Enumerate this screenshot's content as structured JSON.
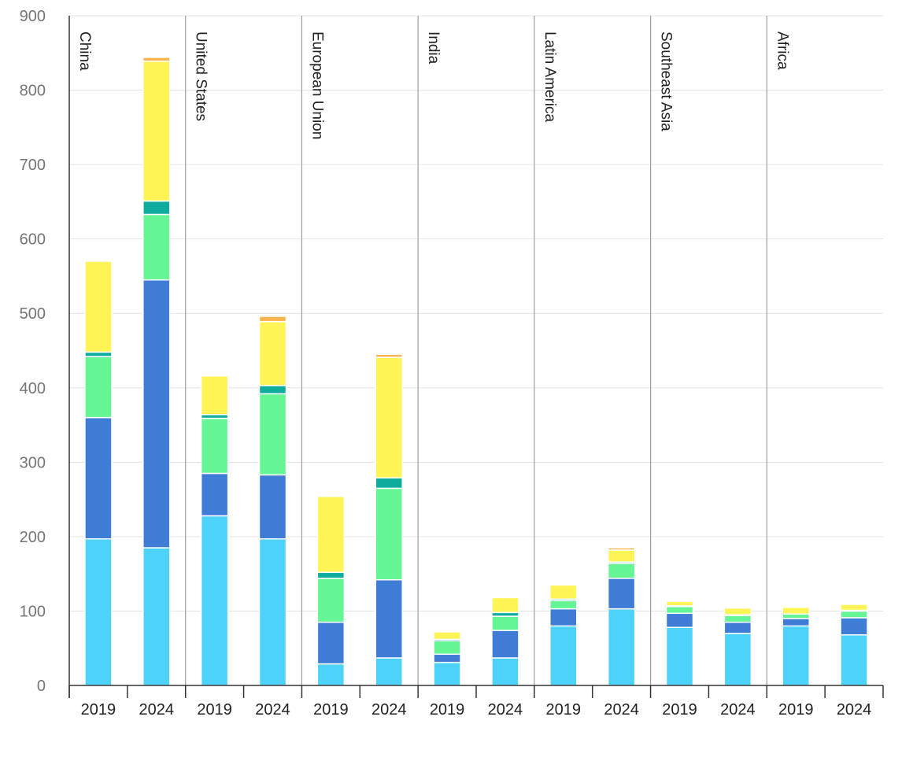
{
  "chart_data": {
    "type": "bar",
    "stacked": true,
    "ylim": [
      0,
      900
    ],
    "yticks": [
      0,
      100,
      200,
      300,
      400,
      500,
      600,
      700,
      800,
      900
    ],
    "grid": true,
    "legend": "none",
    "groups": [
      {
        "name": "China",
        "categories": [
          "2019",
          "2024"
        ]
      },
      {
        "name": "United States",
        "categories": [
          "2019",
          "2024"
        ]
      },
      {
        "name": "European Union",
        "categories": [
          "2019",
          "2024"
        ]
      },
      {
        "name": "India",
        "categories": [
          "2019",
          "2024"
        ]
      },
      {
        "name": "Latin America",
        "categories": [
          "2019",
          "2024"
        ]
      },
      {
        "name": "Southeast Asia",
        "categories": [
          "2019",
          "2024"
        ]
      },
      {
        "name": "Africa",
        "categories": [
          "2019",
          "2024"
        ]
      }
    ],
    "series": [
      {
        "color": "#4dd2fa",
        "values": [
          197,
          185,
          228,
          197,
          29,
          37,
          31,
          37,
          80,
          103,
          78,
          70,
          80,
          68
        ]
      },
      {
        "color": "#3f7cd6",
        "values": [
          163,
          360,
          57,
          86,
          56,
          105,
          11,
          37,
          23,
          41,
          19,
          15,
          10,
          23
        ]
      },
      {
        "color": "#66f595",
        "values": [
          82,
          88,
          74,
          109,
          59,
          123,
          18,
          19,
          11,
          20,
          9,
          9,
          6,
          9
        ]
      },
      {
        "color": "#0fac9d",
        "values": [
          6,
          18,
          5,
          11,
          8,
          14,
          2,
          5,
          2,
          2,
          1,
          1,
          0,
          1
        ]
      },
      {
        "color": "#fff455",
        "values": [
          122,
          188,
          52,
          86,
          102,
          162,
          10,
          20,
          19,
          16,
          6,
          9,
          9,
          8
        ]
      },
      {
        "color": "#f7b24a",
        "values": [
          0,
          5,
          0,
          7,
          0,
          4,
          0,
          0,
          0,
          3,
          0,
          0,
          0,
          0
        ]
      }
    ]
  }
}
